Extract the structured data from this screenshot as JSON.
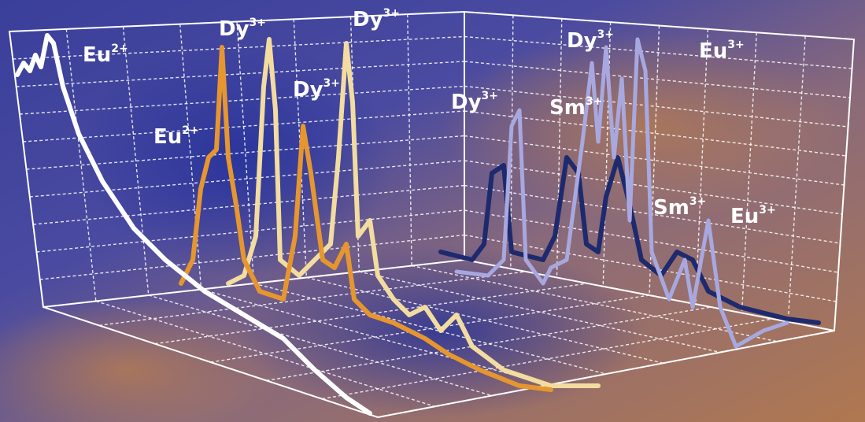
{
  "labels": [
    {
      "ion": "Eu",
      "charge": "2+"
    },
    {
      "ion": "Dy",
      "charge": "3+"
    },
    {
      "ion": "Dy",
      "charge": "3+"
    },
    {
      "ion": "Dy",
      "charge": "3+"
    },
    {
      "ion": "Eu",
      "charge": "2+"
    },
    {
      "ion": "Dy",
      "charge": "3+"
    },
    {
      "ion": "Sm",
      "charge": "3+"
    },
    {
      "ion": "Dy",
      "charge": "3+"
    },
    {
      "ion": "Eu",
      "charge": "3+"
    },
    {
      "ion": "Sm",
      "charge": "3+"
    },
    {
      "ion": "Eu",
      "charge": "3+"
    }
  ]
}
